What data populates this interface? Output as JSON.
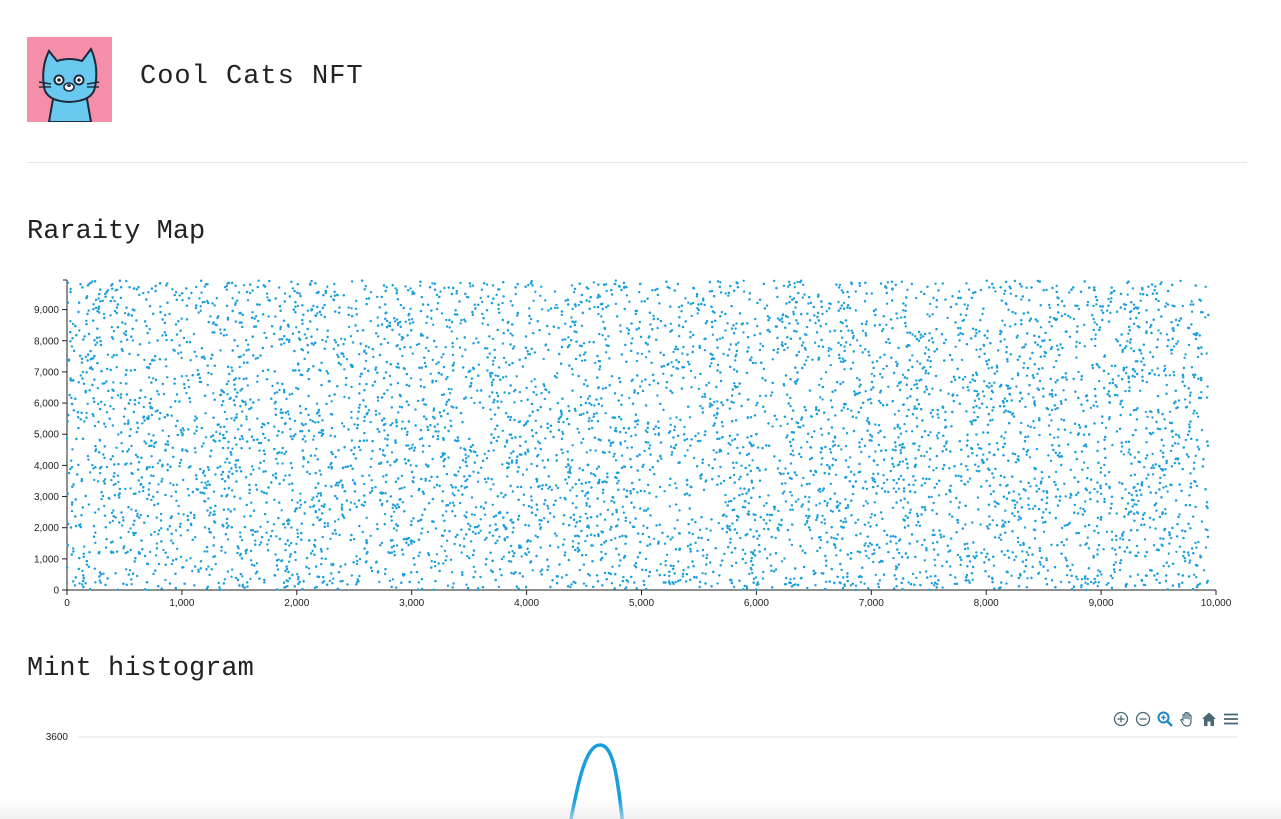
{
  "header": {
    "title": "Cool Cats NFT",
    "logo": {
      "icon": "cool-cat-avatar",
      "background": "#f58fa9",
      "cat_color": "#6ac9ee"
    }
  },
  "sections": {
    "rarity_title": "Raraity Map",
    "mint_title": "Mint histogram"
  },
  "colors": {
    "point": "#1a9fdc",
    "line": "#1a9fdc",
    "toolbar_icon": "#4a6778",
    "grid": "#e0e0e0"
  },
  "toolbar": {
    "tools": [
      {
        "name": "zoom-in-icon"
      },
      {
        "name": "zoom-out-icon"
      },
      {
        "name": "selection-zoom-icon"
      },
      {
        "name": "pan-hand-icon"
      },
      {
        "name": "home-reset-icon"
      },
      {
        "name": "menu-icon"
      }
    ]
  },
  "chart_data": [
    {
      "type": "scatter",
      "title": "Raraity Map",
      "xlabel": "",
      "ylabel": "",
      "xlim": [
        0,
        10000
      ],
      "ylim": [
        0,
        9950
      ],
      "x_ticks": [
        "0",
        "1,000",
        "2,000",
        "3,000",
        "4,000",
        "5,000",
        "6,000",
        "7,000",
        "8,000",
        "9,000",
        "10,000"
      ],
      "y_ticks": [
        "0",
        "1,000",
        "2,000",
        "3,000",
        "4,000",
        "5,000",
        "6,000",
        "7,000",
        "8,000",
        "9,000"
      ],
      "x_tick_values": [
        0,
        1000,
        2000,
        3000,
        4000,
        5000,
        6000,
        7000,
        8000,
        9000,
        10000
      ],
      "y_tick_values": [
        0,
        1000,
        2000,
        3000,
        4000,
        5000,
        6000,
        7000,
        8000,
        9000
      ],
      "point_count": 9933,
      "x_range": [
        0,
        9933
      ],
      "y_range": [
        0,
        9933
      ],
      "distribution": "uniform random",
      "grid": false
    },
    {
      "type": "line",
      "title": "Mint histogram",
      "y_ticks": [
        "3600"
      ],
      "y_tick_values": [
        3600
      ],
      "visible_peak": {
        "y": 3600
      },
      "grid": true
    }
  ]
}
